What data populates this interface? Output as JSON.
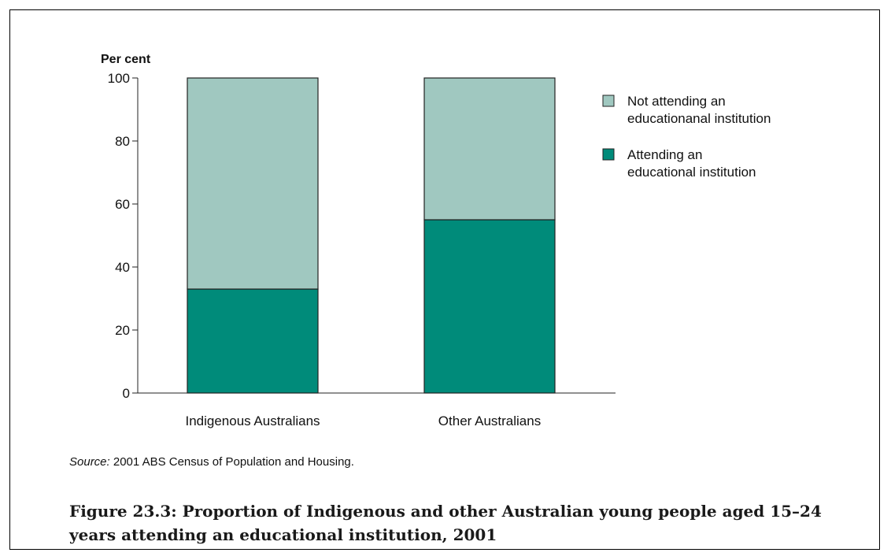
{
  "chart_data": {
    "type": "bar",
    "stacked": true,
    "ylabel": "Per cent",
    "ylim": [
      0,
      100
    ],
    "yticks": [
      0,
      20,
      40,
      60,
      80,
      100
    ],
    "grid": false,
    "legend_position": "right",
    "categories": [
      "Indigenous Australians",
      "Other Australians"
    ],
    "series": [
      {
        "name": "Attending an educational institution",
        "values": [
          33,
          55
        ],
        "color": "#008b7a"
      },
      {
        "name": "Not attending an educationanal institution",
        "values": [
          67,
          45
        ],
        "color": "#a0c8c0"
      }
    ],
    "legend": [
      {
        "lines": [
          "Not attending an",
          "educationanal institution"
        ],
        "color": "#a0c8c0"
      },
      {
        "lines": [
          "Attending an",
          "educational institution"
        ],
        "color": "#008b7a"
      }
    ]
  },
  "source": {
    "label": "Source:",
    "text": " 2001 ABS Census of Population and Housing."
  },
  "caption": "Figure 23.3: Proportion of Indigenous and other Australian young people aged 15–24 years attending an educational institution, 2001"
}
